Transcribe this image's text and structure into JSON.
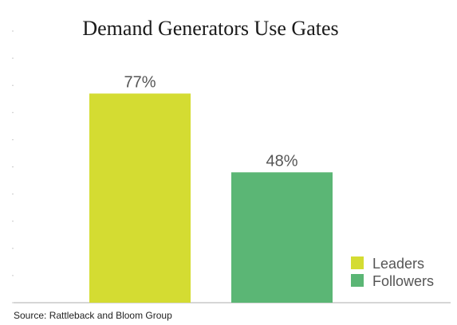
{
  "chart_data": {
    "type": "bar",
    "title": "Demand Generators Use Gates",
    "categories": [
      "Leaders",
      "Followers"
    ],
    "values": [
      77,
      48
    ],
    "value_labels": [
      "77%",
      "48%"
    ],
    "ylim": [
      0,
      100
    ],
    "xlabel": "",
    "ylabel": "",
    "grid": false,
    "legend": {
      "placement": "bottom-right",
      "entries": [
        "Leaders",
        "Followers"
      ]
    },
    "colors": {
      "Leaders": "#d4dc32",
      "Followers": "#5bb675"
    }
  },
  "source": "Source: Rattleback and Bloom Group",
  "axis_color": "#c8c8c8"
}
